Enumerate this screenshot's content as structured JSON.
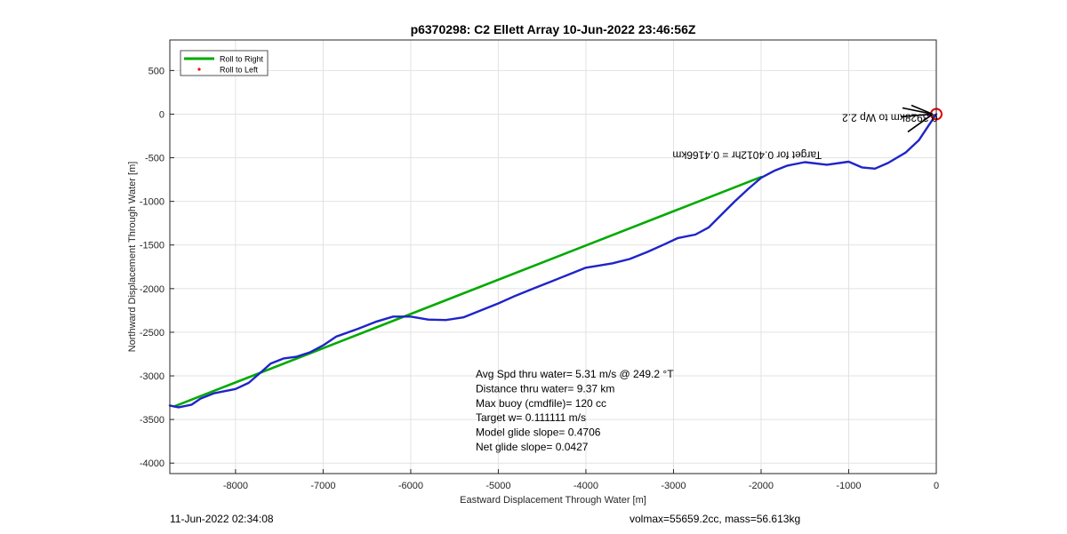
{
  "chart_data": {
    "type": "line",
    "title": "p6370298: C2 Ellett Array 10-Jun-2022 23:46:56Z",
    "xlabel": "Eastward Displacement Through Water [m]",
    "ylabel": "Northward Displacement Through Water [m]",
    "xlim": [
      -8750,
      0
    ],
    "ylim": [
      -4120,
      850
    ],
    "xticks": [
      -8000,
      -7000,
      -6000,
      -5000,
      -4000,
      -3000,
      -2000,
      -1000,
      0
    ],
    "yticks": [
      500,
      0,
      -500,
      -1000,
      -1500,
      -2000,
      -2500,
      -3000,
      -3500,
      -4000
    ],
    "grid": true,
    "legend_location": "top-left",
    "legend": [
      {
        "label": "Roll to Right",
        "color": "#00aa00",
        "marker": "line"
      },
      {
        "label": "Roll to Left",
        "color": "#ff0000",
        "marker": "dot"
      }
    ],
    "series": [
      {
        "color": "#00aa00",
        "points": [
          [
            -8700,
            -3350
          ],
          [
            -2000,
            -720
          ]
        ]
      },
      {
        "color": "#1f24c8",
        "points": [
          [
            -8750,
            -3340
          ],
          [
            -8650,
            -3360
          ],
          [
            -8500,
            -3330
          ],
          [
            -8400,
            -3260
          ],
          [
            -8250,
            -3200
          ],
          [
            -8000,
            -3150
          ],
          [
            -7850,
            -3080
          ],
          [
            -7700,
            -2950
          ],
          [
            -7600,
            -2860
          ],
          [
            -7450,
            -2800
          ],
          [
            -7300,
            -2780
          ],
          [
            -7150,
            -2730
          ],
          [
            -7000,
            -2650
          ],
          [
            -6850,
            -2550
          ],
          [
            -6600,
            -2460
          ],
          [
            -6400,
            -2380
          ],
          [
            -6200,
            -2320
          ],
          [
            -6000,
            -2320
          ],
          [
            -5800,
            -2355
          ],
          [
            -5600,
            -2360
          ],
          [
            -5400,
            -2330
          ],
          [
            -5200,
            -2250
          ],
          [
            -5000,
            -2170
          ],
          [
            -4800,
            -2080
          ],
          [
            -4600,
            -2000
          ],
          [
            -4400,
            -1920
          ],
          [
            -4200,
            -1840
          ],
          [
            -4000,
            -1760
          ],
          [
            -3700,
            -1710
          ],
          [
            -3500,
            -1660
          ],
          [
            -3300,
            -1580
          ],
          [
            -3100,
            -1490
          ],
          [
            -2950,
            -1420
          ],
          [
            -2750,
            -1380
          ],
          [
            -2600,
            -1300
          ],
          [
            -2450,
            -1150
          ],
          [
            -2300,
            -1000
          ],
          [
            -2150,
            -860
          ],
          [
            -2000,
            -730
          ],
          [
            -1850,
            -650
          ],
          [
            -1700,
            -590
          ],
          [
            -1500,
            -550
          ],
          [
            -1250,
            -580
          ],
          [
            -1000,
            -545
          ],
          [
            -850,
            -610
          ],
          [
            -700,
            -625
          ],
          [
            -550,
            -560
          ],
          [
            -350,
            -440
          ],
          [
            -200,
            -300
          ],
          [
            -80,
            -120
          ],
          [
            0,
            0
          ]
        ]
      }
    ],
    "annotations": [
      {
        "text": "0.3928km to Wp 2.2",
        "rotated_180": true,
        "x": -530,
        "y": 0,
        "color": "#000000"
      },
      {
        "text": "Target for 0.4012hr = 0.4166km",
        "rotated_180": true,
        "x": -2160,
        "y": -430,
        "color": "#000000"
      }
    ],
    "stats": [
      "Avg Spd thru water=  5.31 m/s @ 249.2 °T",
      "Distance thru water=  9.37 km",
      "Max buoy (cmdfile)= 120 cc",
      "Target w= 0.111111 m/s",
      "Model glide slope= 0.4706",
      "Net glide slope= 0.0427"
    ]
  },
  "footer": {
    "left": "11-Jun-2022 02:34:08",
    "right": "volmax=55659.2cc, mass=56.613kg"
  }
}
